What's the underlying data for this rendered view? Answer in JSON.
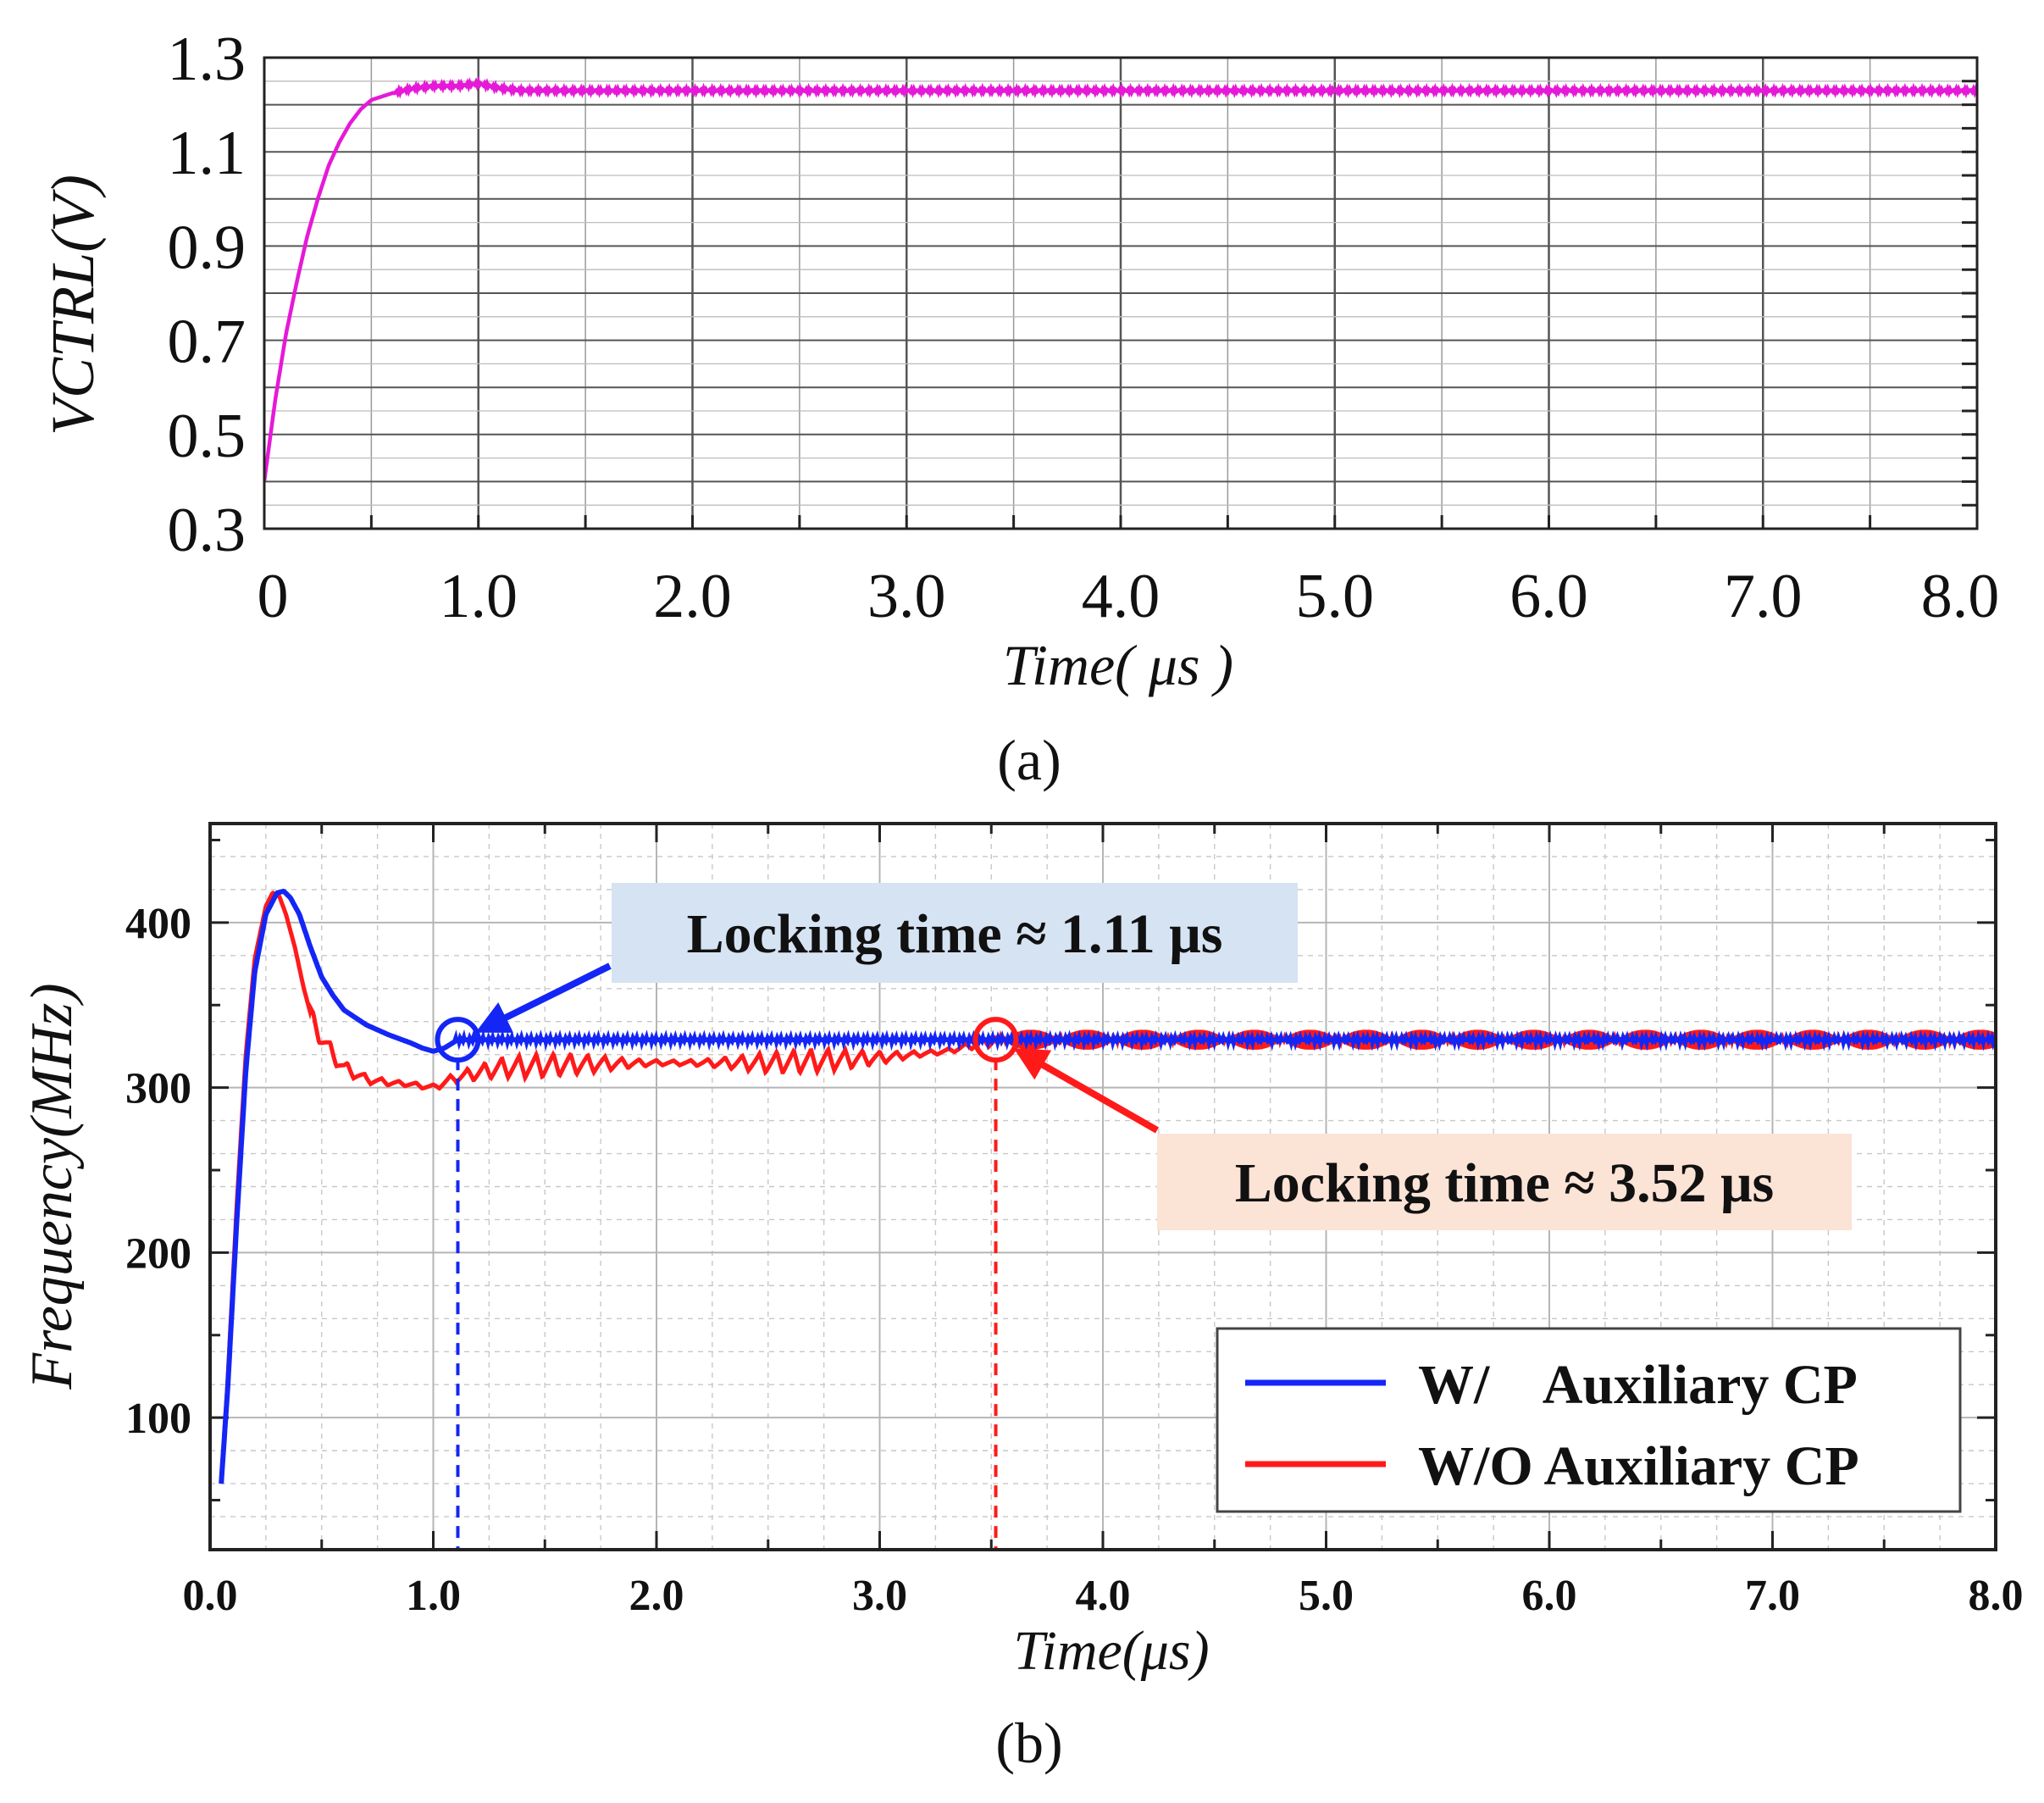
{
  "colors": {
    "panel_a_line": "#e619d8",
    "with_aux": "#1426f5",
    "without_aux": "#ff1a1a",
    "annotation_blue_bg": "#d6e3f3",
    "annotation_red_bg": "#fbe3d6",
    "grid_major": "#555555",
    "grid_minor": "#c8c8c8"
  },
  "chart_data": [
    {
      "id": "a",
      "type": "line",
      "caption": "(a)",
      "xlabel": "Time( μs )",
      "ylabel": "VCTRL(V)",
      "xlim": [
        0,
        8
      ],
      "ylim": [
        0.3,
        1.3
      ],
      "x_ticks": [
        0,
        1,
        2,
        3,
        4,
        5,
        6,
        7,
        8
      ],
      "x_tick_labels": [
        "0",
        "1.0",
        "2.0",
        "3.0",
        "4.0",
        "5.0",
        "6.0",
        "7.0",
        "8.0"
      ],
      "y_ticks": [
        0.3,
        0.5,
        0.7,
        0.9,
        1.1,
        1.3
      ],
      "y_tick_labels": [
        "0.3",
        "0.5",
        "0.7",
        "0.9",
        "1.1",
        "1.3"
      ],
      "grid": true,
      "series": [
        {
          "name": "VCTRL",
          "color_key": "panel_a_line",
          "x": [
            0,
            0.05,
            0.1,
            0.15,
            0.2,
            0.25,
            0.3,
            0.35,
            0.4,
            0.45,
            0.5,
            0.6,
            0.7,
            0.8,
            0.9,
            1.0,
            1.1,
            1.2,
            1.5,
            2.0,
            3.0,
            4.0,
            5.0,
            6.0,
            7.0,
            8.0
          ],
          "y": [
            0.4,
            0.57,
            0.71,
            0.82,
            0.92,
            1.0,
            1.07,
            1.12,
            1.16,
            1.19,
            1.21,
            1.225,
            1.235,
            1.24,
            1.24,
            1.245,
            1.235,
            1.23,
            1.23,
            1.23,
            1.23,
            1.23,
            1.23,
            1.23,
            1.23,
            1.23
          ],
          "ripple": 0.004
        }
      ]
    },
    {
      "id": "b",
      "type": "line",
      "caption": "(b)",
      "xlabel": "Time(μs)",
      "ylabel": "Frequency(MHz)",
      "xlim": [
        0,
        8
      ],
      "ylim": [
        20,
        460
      ],
      "x_ticks": [
        0,
        1,
        2,
        3,
        4,
        5,
        6,
        7,
        8
      ],
      "x_tick_labels": [
        "0.0",
        "1.0",
        "2.0",
        "3.0",
        "4.0",
        "5.0",
        "6.0",
        "7.0",
        "8.0"
      ],
      "y_ticks": [
        100,
        200,
        300,
        400
      ],
      "y_tick_labels": [
        "100",
        "200",
        "300",
        "400"
      ],
      "grid": true,
      "legend_position": "bottom-right",
      "series": [
        {
          "name": "W/    Auxiliary CP",
          "color_key": "with_aux",
          "x": [
            0.05,
            0.08,
            0.12,
            0.16,
            0.2,
            0.25,
            0.3,
            0.33,
            0.36,
            0.4,
            0.45,
            0.5,
            0.55,
            0.6,
            0.7,
            0.8,
            0.9,
            0.95,
            1.0,
            1.05,
            1.11,
            1.2,
            1.5,
            2.0,
            3.0,
            4.0,
            5.0,
            6.0,
            7.0,
            8.0
          ],
          "y": [
            60,
            120,
            220,
            310,
            370,
            405,
            418,
            419,
            415,
            405,
            385,
            367,
            356,
            347,
            338,
            332,
            327,
            324,
            322,
            324,
            329,
            329,
            329,
            329,
            329,
            329,
            329,
            329,
            329,
            329
          ],
          "ripple": 1.2
        },
        {
          "name": "W/O Auxiliary CP",
          "color_key": "without_aux",
          "x": [
            0.05,
            0.08,
            0.12,
            0.16,
            0.2,
            0.25,
            0.28,
            0.31,
            0.34,
            0.38,
            0.42,
            0.46,
            0.5,
            0.55,
            0.6,
            0.7,
            0.8,
            0.9,
            1.0,
            1.1,
            1.3,
            1.6,
            2.0,
            2.5,
            3.0,
            3.3,
            3.52,
            4.0,
            5.0,
            6.0,
            7.0,
            8.0
          ],
          "y": [
            60,
            125,
            230,
            320,
            378,
            410,
            418,
            416,
            405,
            385,
            360,
            340,
            330,
            320,
            312,
            305,
            303,
            302,
            300,
            306,
            312,
            314,
            315,
            315,
            318,
            322,
            329,
            329,
            329,
            329,
            329,
            329
          ],
          "ripple": 14,
          "ripple_end": 3.52,
          "steady_ripple": 6
        }
      ],
      "annotations": [
        {
          "text": "Locking time ≈ 1.11 μs",
          "x": 1.11,
          "y": 329,
          "color_key": "with_aux",
          "bg_key": "annotation_blue_bg"
        },
        {
          "text": "Locking time ≈ 3.52 μs",
          "x": 3.52,
          "y": 329,
          "color_key": "without_aux",
          "bg_key": "annotation_red_bg"
        }
      ]
    }
  ]
}
